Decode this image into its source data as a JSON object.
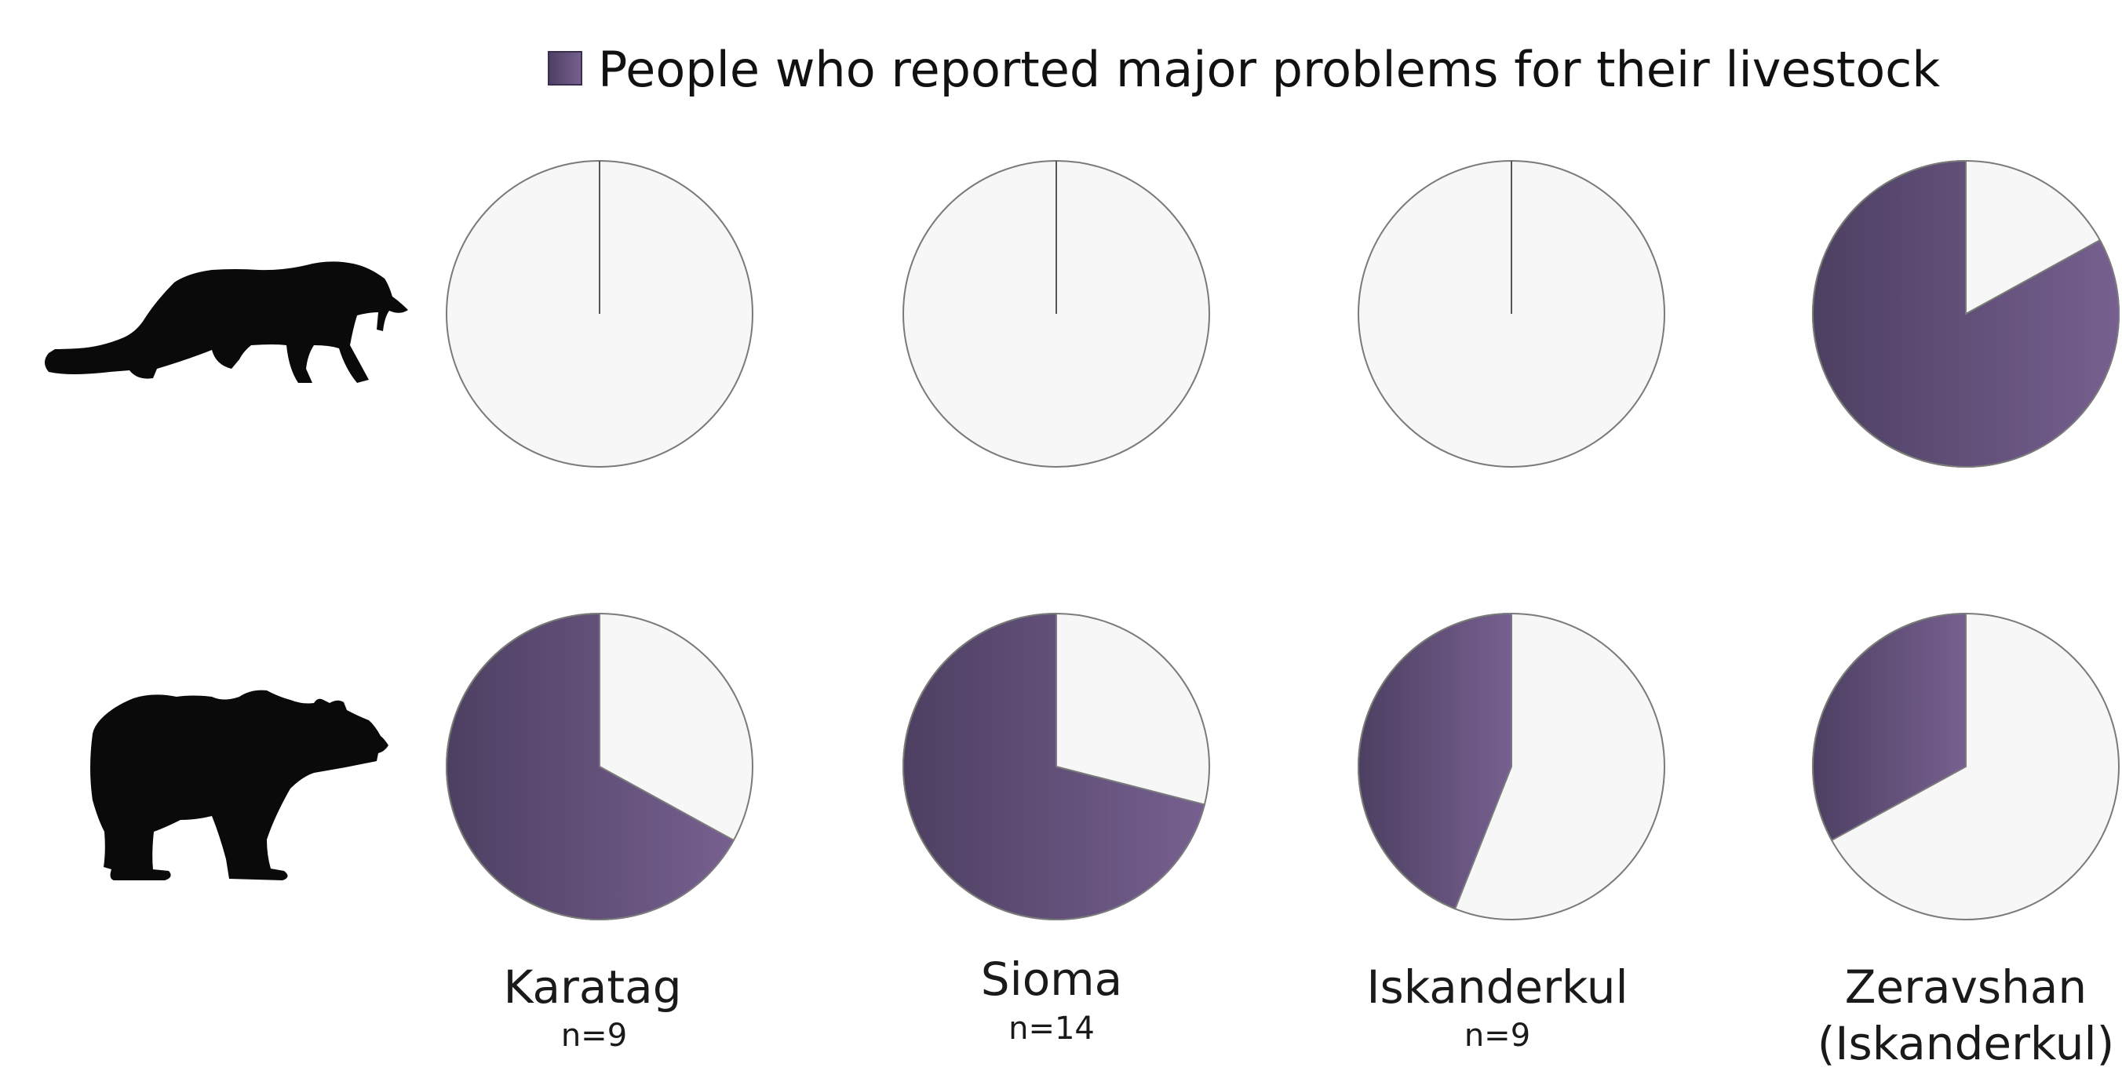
{
  "chart_data": {
    "type": "pie",
    "title": "",
    "legend": {
      "label": "People who reported major problems for their livestock",
      "position": "top-center"
    },
    "colors": {
      "reported": "#5e4a7a",
      "reported_gradient_start": "#4d3f62",
      "reported_gradient_end": "#76608f",
      "other": "#f7f7f7",
      "outline": "#7a7a7a"
    },
    "predators": [
      {
        "name": "snow leopard",
        "icon": "snow-leopard-icon"
      },
      {
        "name": "brown bear",
        "icon": "brown-bear-icon"
      }
    ],
    "sites": [
      {
        "name": "Karatag",
        "n": "n=9"
      },
      {
        "name": "Sioma",
        "n": "n=14"
      },
      {
        "name": "Iskanderkul",
        "n": "n=9"
      },
      {
        "name": "Zeravshan",
        "name_line2": "(Iskanderkul)",
        "n": ""
      }
    ],
    "values_percent_reported": [
      [
        0,
        0,
        0,
        83
      ],
      [
        67,
        71,
        44,
        33
      ]
    ]
  }
}
